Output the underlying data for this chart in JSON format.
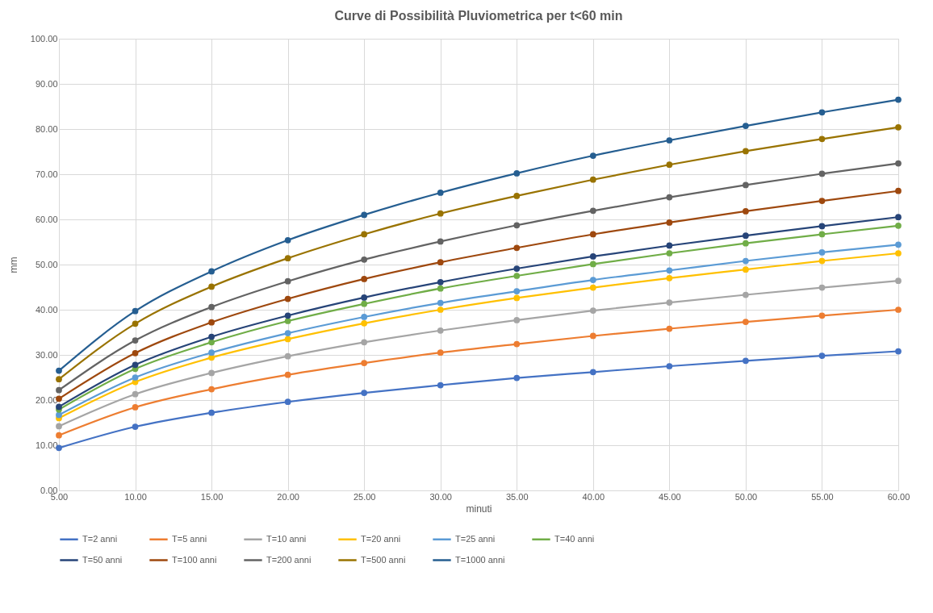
{
  "chart_data": {
    "type": "line",
    "title": "Curve di  Possibilità Pluviometrica per t<60 min",
    "xlabel": "minuti",
    "ylabel": "mm",
    "x": [
      5,
      10,
      15,
      20,
      25,
      30,
      35,
      40,
      45,
      50,
      55,
      60
    ],
    "xlim": [
      5,
      60
    ],
    "xticks": [
      {
        "value": 5,
        "label": "5.00"
      },
      {
        "value": 10,
        "label": "10.00"
      },
      {
        "value": 15,
        "label": "15.00"
      },
      {
        "value": 20,
        "label": "20.00"
      },
      {
        "value": 25,
        "label": "25.00"
      },
      {
        "value": 30,
        "label": "30.00"
      },
      {
        "value": 35,
        "label": "35.00"
      },
      {
        "value": 40,
        "label": "40.00"
      },
      {
        "value": 45,
        "label": "45.00"
      },
      {
        "value": 50,
        "label": "50.00"
      },
      {
        "value": 55,
        "label": "55.00"
      },
      {
        "value": 60,
        "label": "60.00"
      }
    ],
    "ylim": [
      0,
      100
    ],
    "yticks": [
      {
        "value": 0,
        "label": "0.00"
      },
      {
        "value": 10,
        "label": "10.00"
      },
      {
        "value": 20,
        "label": "20.00"
      },
      {
        "value": 30,
        "label": "30.00"
      },
      {
        "value": 40,
        "label": "40.00"
      },
      {
        "value": 50,
        "label": "50.00"
      },
      {
        "value": 60,
        "label": "60.00"
      },
      {
        "value": 70,
        "label": "70.00"
      },
      {
        "value": 80,
        "label": "80.00"
      },
      {
        "value": 90,
        "label": "90.00"
      },
      {
        "value": 100,
        "label": "100.00"
      }
    ],
    "grid": true,
    "legend": "bottom",
    "marker": "circle",
    "line_style": "solid",
    "series": [
      {
        "name": "T=2 anni",
        "color": "#4472c4",
        "values": [
          9.4,
          14.1,
          17.2,
          19.6,
          21.6,
          23.3,
          24.9,
          26.2,
          27.5,
          28.7,
          29.8,
          30.8
        ]
      },
      {
        "name": "T=5 anni",
        "color": "#ed7d31",
        "values": [
          12.2,
          18.4,
          22.4,
          25.6,
          28.2,
          30.5,
          32.4,
          34.2,
          35.8,
          37.3,
          38.7,
          40.0
        ]
      },
      {
        "name": "T=10 anni",
        "color": "#a5a5a5",
        "values": [
          14.2,
          21.3,
          26.0,
          29.7,
          32.8,
          35.4,
          37.7,
          39.8,
          41.6,
          43.3,
          44.9,
          46.4
        ]
      },
      {
        "name": "T=20 anni",
        "color": "#ffc000",
        "values": [
          16.0,
          24.0,
          29.4,
          33.5,
          37.0,
          40.0,
          42.6,
          44.9,
          47.0,
          48.9,
          50.8,
          52.5
        ]
      },
      {
        "name": "T=25 anni",
        "color": "#5b9bd5",
        "values": [
          16.7,
          25.0,
          30.5,
          34.8,
          38.4,
          41.5,
          44.1,
          46.6,
          48.7,
          50.8,
          52.7,
          54.4
        ]
      },
      {
        "name": "T=40 anni",
        "color": "#70ad47",
        "values": [
          17.9,
          26.9,
          32.8,
          37.5,
          41.3,
          44.7,
          47.5,
          50.1,
          52.5,
          54.7,
          56.7,
          58.6
        ]
      },
      {
        "name": "T=50 anni",
        "color": "#264478",
        "values": [
          18.5,
          27.8,
          34.0,
          38.7,
          42.7,
          46.1,
          49.1,
          51.8,
          54.2,
          56.4,
          58.5,
          60.5
        ]
      },
      {
        "name": "T=100 anni",
        "color": "#9e480e",
        "values": [
          20.3,
          30.4,
          37.2,
          42.4,
          46.8,
          50.5,
          53.7,
          56.7,
          59.3,
          61.8,
          64.1,
          66.3
        ]
      },
      {
        "name": "T=200 anni",
        "color": "#636363",
        "values": [
          22.2,
          33.2,
          40.6,
          46.3,
          51.1,
          55.1,
          58.7,
          61.9,
          64.9,
          67.6,
          70.1,
          72.4
        ]
      },
      {
        "name": "T=500 anni",
        "color": "#997300",
        "values": [
          24.6,
          36.9,
          45.1,
          51.4,
          56.7,
          61.3,
          65.2,
          68.8,
          72.1,
          75.1,
          77.8,
          80.4
        ]
      },
      {
        "name": "T=1000 anni",
        "color": "#255e91",
        "values": [
          26.5,
          39.7,
          48.5,
          55.4,
          61.0,
          65.9,
          70.2,
          74.1,
          77.5,
          80.7,
          83.7,
          86.5
        ]
      }
    ]
  }
}
